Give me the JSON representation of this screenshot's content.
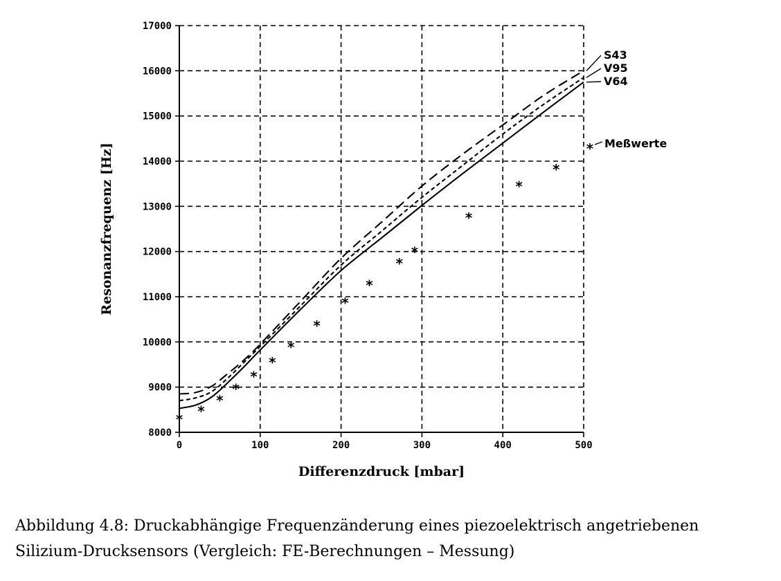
{
  "caption": {
    "line1": "Abbildung 4.8: Druckabhängige Frequenzänderung eines piezoelektrisch angetriebenen",
    "line2": "Silizium-Drucksensors (Vergleich: FE-Berechnungen – Messung)"
  },
  "chart_data": {
    "type": "line",
    "title": "",
    "xlabel": "Differenzdruck [mbar]",
    "ylabel": "Resonanzfrequenz [Hz]",
    "xlim": [
      0,
      500
    ],
    "ylim": [
      8000,
      17000
    ],
    "xticks": [
      0,
      100,
      200,
      300,
      400,
      500
    ],
    "yticks": [
      8000,
      9000,
      10000,
      11000,
      12000,
      13000,
      14000,
      15000,
      16000,
      17000
    ],
    "grid": true,
    "series": [
      {
        "name": "S43",
        "style": "long-dash",
        "x": [
          0,
          20,
          40,
          60,
          80,
          100,
          150,
          200,
          250,
          300,
          350,
          400,
          450,
          500
        ],
        "y": [
          8850,
          8880,
          9020,
          9300,
          9600,
          9950,
          10900,
          11850,
          12650,
          13450,
          14150,
          14800,
          15450,
          16000
        ]
      },
      {
        "name": "V95",
        "style": "short-dash",
        "x": [
          0,
          20,
          40,
          60,
          80,
          100,
          150,
          200,
          250,
          300,
          350,
          400,
          450,
          500
        ],
        "y": [
          8700,
          8760,
          8900,
          9200,
          9550,
          9900,
          10800,
          11700,
          12450,
          13200,
          13900,
          14600,
          15250,
          15850
        ]
      },
      {
        "name": "V64",
        "style": "solid",
        "x": [
          0,
          20,
          40,
          60,
          80,
          100,
          150,
          200,
          250,
          300,
          350,
          400,
          450,
          500
        ],
        "y": [
          8530,
          8600,
          8780,
          9100,
          9450,
          9820,
          10720,
          11580,
          12300,
          13020,
          13720,
          14400,
          15080,
          15750
        ]
      },
      {
        "name": "Meßwerte",
        "style": "markers",
        "marker": "*",
        "x": [
          0,
          27,
          50,
          70,
          92,
          115,
          138,
          170,
          205,
          235,
          272,
          291,
          358,
          420,
          466
        ],
        "y": [
          8300,
          8480,
          8720,
          8970,
          9250,
          9560,
          9900,
          10370,
          10880,
          11270,
          11750,
          12000,
          12760,
          13460,
          13830
        ]
      }
    ]
  }
}
